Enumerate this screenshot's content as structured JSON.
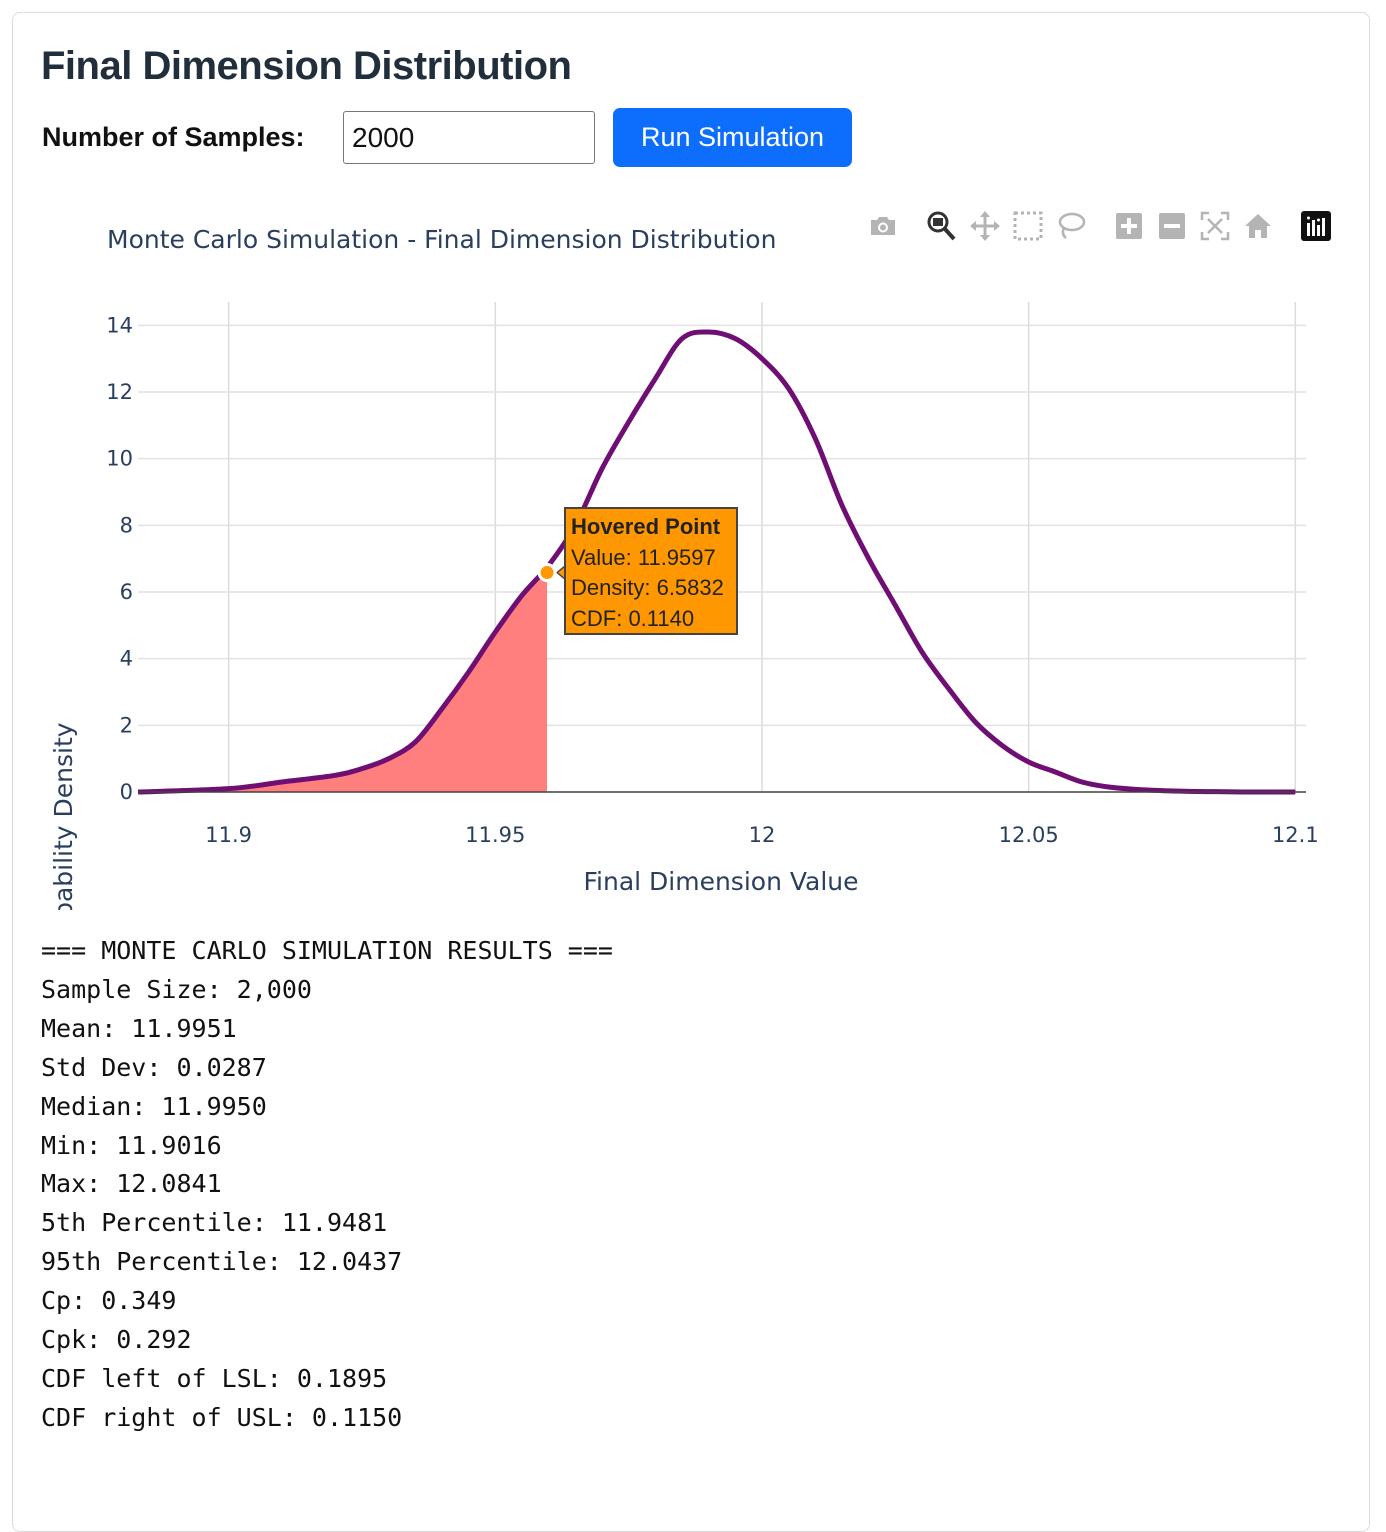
{
  "page": {
    "title": "Final Dimension Distribution",
    "samples_label": "Number of Samples:",
    "samples_value": "2000",
    "run_button": "Run Simulation"
  },
  "modebar": [
    "camera-icon",
    "zoom-icon",
    "pan-icon",
    "box-select-icon",
    "lasso-icon",
    "zoom-in-icon",
    "zoom-out-icon",
    "autoscale-icon",
    "reset-axes-icon",
    "plotly-logo-icon"
  ],
  "colors": {
    "curve": "#6f0f74",
    "fill": "#ff7f7f",
    "tooltip_bg": "#ff9800",
    "hover_marker": "#ff9800",
    "accent": "#0d6efd"
  },
  "chart_data": {
    "type": "area",
    "title": "Monte Carlo Simulation - Final Dimension Distribution",
    "xlabel": "Final Dimension Value",
    "ylabel": "Probability Density",
    "xlim": [
      11.883,
      12.102
    ],
    "ylim": [
      0,
      14.7
    ],
    "x_ticks": [
      11.9,
      11.95,
      12,
      12.05,
      12.1
    ],
    "x_tick_labels": [
      "11.9",
      "11.95",
      "12",
      "12.05",
      "12.1"
    ],
    "y_ticks": [
      0,
      2,
      4,
      6,
      8,
      10,
      12,
      14
    ],
    "y_tick_labels": [
      "0",
      "2",
      "4",
      "6",
      "8",
      "10",
      "12",
      "14"
    ],
    "grid": true,
    "series": [
      {
        "x": [
          11.883,
          11.9,
          11.91,
          11.92,
          11.925,
          11.93,
          11.935,
          11.94,
          11.945,
          11.95,
          11.955,
          11.96,
          11.965,
          11.97,
          11.975,
          11.98,
          11.985,
          11.99,
          11.995,
          12.0,
          12.005,
          12.01,
          12.015,
          12.02,
          12.025,
          12.03,
          12.035,
          12.04,
          12.045,
          12.05,
          12.055,
          12.06,
          12.065,
          12.07,
          12.075,
          12.08,
          12.085,
          12.09,
          12.095,
          12.1
        ],
        "y": [
          0.0,
          0.1,
          0.3,
          0.5,
          0.7,
          1.0,
          1.5,
          2.5,
          3.6,
          4.8,
          5.9,
          6.8,
          8.0,
          9.7,
          11.1,
          12.4,
          13.6,
          13.8,
          13.6,
          13.0,
          12.1,
          10.6,
          8.6,
          7.0,
          5.6,
          4.2,
          3.1,
          2.1,
          1.4,
          0.9,
          0.6,
          0.3,
          0.15,
          0.08,
          0.04,
          0.02,
          0.01,
          0.0,
          0.0,
          0.0
        ]
      }
    ],
    "shaded_region": {
      "x_from": 11.883,
      "x_to": 11.9597
    },
    "hovered_point": {
      "x": 11.9597,
      "y": 6.5832,
      "label_title": "Hovered Point",
      "label_value": "Value: 11.9597",
      "label_density": "Density: 6.5832",
      "label_cdf": "CDF: 0.1140"
    }
  },
  "results": {
    "lines": [
      "=== MONTE CARLO SIMULATION RESULTS ===",
      "Sample Size: 2,000",
      "Mean: 11.9951",
      "Std Dev: 0.0287",
      "Median: 11.9950",
      "Min: 11.9016",
      "Max: 12.0841",
      "5th Percentile: 11.9481",
      "95th Percentile: 12.0437",
      "Cp: 0.349",
      "Cpk: 0.292",
      "CDF left of LSL: 0.1895",
      "CDF right of USL: 0.1150"
    ]
  }
}
